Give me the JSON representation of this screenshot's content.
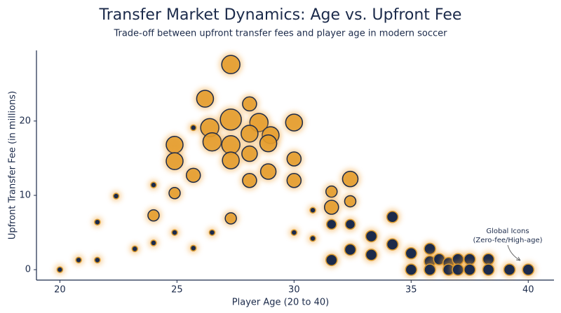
{
  "chart_data": {
    "type": "bubble",
    "title": "Transfer Market Dynamics: Age vs. Upfront Fee",
    "subtitle": "Trade-off between upfront transfer fees and player age in modern soccer",
    "xlabel": "Player Age (20 to 40)",
    "ylabel": "Upfront Transfer Fee (in millions)",
    "annotation": [
      "Global Icons",
      "(Zero-fee/High-age)"
    ],
    "xlim": [
      19,
      41.1
    ],
    "ylim": [
      -1.4,
      29.5
    ],
    "xticks": [
      20,
      25,
      30,
      35,
      40
    ],
    "yticks": [
      0,
      10,
      20
    ],
    "series": [
      {
        "color": "#e39b2a",
        "edge": "#1b2a4a",
        "x": [
          27.3,
          26.2,
          28.1,
          26.4,
          27.3,
          28.5,
          29.0,
          30.0,
          28.1,
          26.5,
          27.3,
          24.9,
          28.9,
          24.9,
          27.3,
          28.1,
          30.0,
          25.7,
          28.9,
          28.1,
          30.0,
          24.9,
          24.0,
          27.3,
          31.6,
          31.6,
          32.4,
          32.4
        ],
        "values": [
          27.6,
          23.0,
          22.3,
          19.1,
          20.2,
          19.8,
          18.1,
          19.8,
          18.3,
          17.2,
          16.8,
          16.8,
          17.0,
          14.6,
          14.7,
          15.6,
          14.9,
          12.7,
          13.2,
          12.0,
          12.0,
          10.3,
          7.3,
          6.9,
          10.5,
          8.4,
          12.2,
          9.2
        ],
        "sizes": [
          13,
          12,
          10,
          13,
          15,
          13,
          12,
          12,
          12,
          13,
          13,
          12,
          12,
          12,
          12,
          11,
          10,
          10,
          11,
          10,
          10,
          8,
          8,
          8,
          8,
          10,
          11,
          8
        ]
      },
      {
        "color": "#1b2a4a",
        "edge": "#d99a30",
        "x": [
          20.0,
          20.8,
          21.6,
          21.6,
          22.4,
          23.2,
          24.0,
          24.0,
          24.9,
          25.7,
          25.7,
          26.5,
          30.0,
          30.8,
          30.8,
          31.6,
          32.4,
          31.6,
          32.4,
          33.3,
          33.3,
          34.2,
          34.2,
          35.0,
          35.0,
          35.8,
          35.8,
          35.8,
          36.2,
          36.6,
          36.6,
          37.0,
          37.0,
          37.5,
          37.5,
          38.3,
          38.3,
          39.2,
          40.0
        ],
        "values": [
          0,
          1.3,
          1.3,
          6.4,
          9.9,
          2.8,
          3.6,
          11.4,
          5.0,
          2.9,
          19.1,
          5.0,
          5.0,
          8.0,
          4.2,
          6.1,
          6.1,
          1.3,
          2.7,
          4.5,
          2.0,
          3.4,
          7.1,
          2.2,
          0,
          2.8,
          1.1,
          0,
          1.4,
          0.9,
          0,
          1.4,
          0,
          1.4,
          0,
          1.4,
          0,
          0,
          0
        ],
        "sizes": [
          4,
          4,
          4,
          4,
          4,
          4,
          4,
          4,
          4,
          4,
          4,
          4,
          4,
          4,
          4,
          7,
          7,
          8,
          8,
          8,
          8,
          8,
          8,
          8,
          8,
          8,
          8,
          8,
          8,
          8,
          8,
          8,
          8,
          8,
          8,
          8,
          8,
          8,
          8
        ]
      }
    ]
  }
}
